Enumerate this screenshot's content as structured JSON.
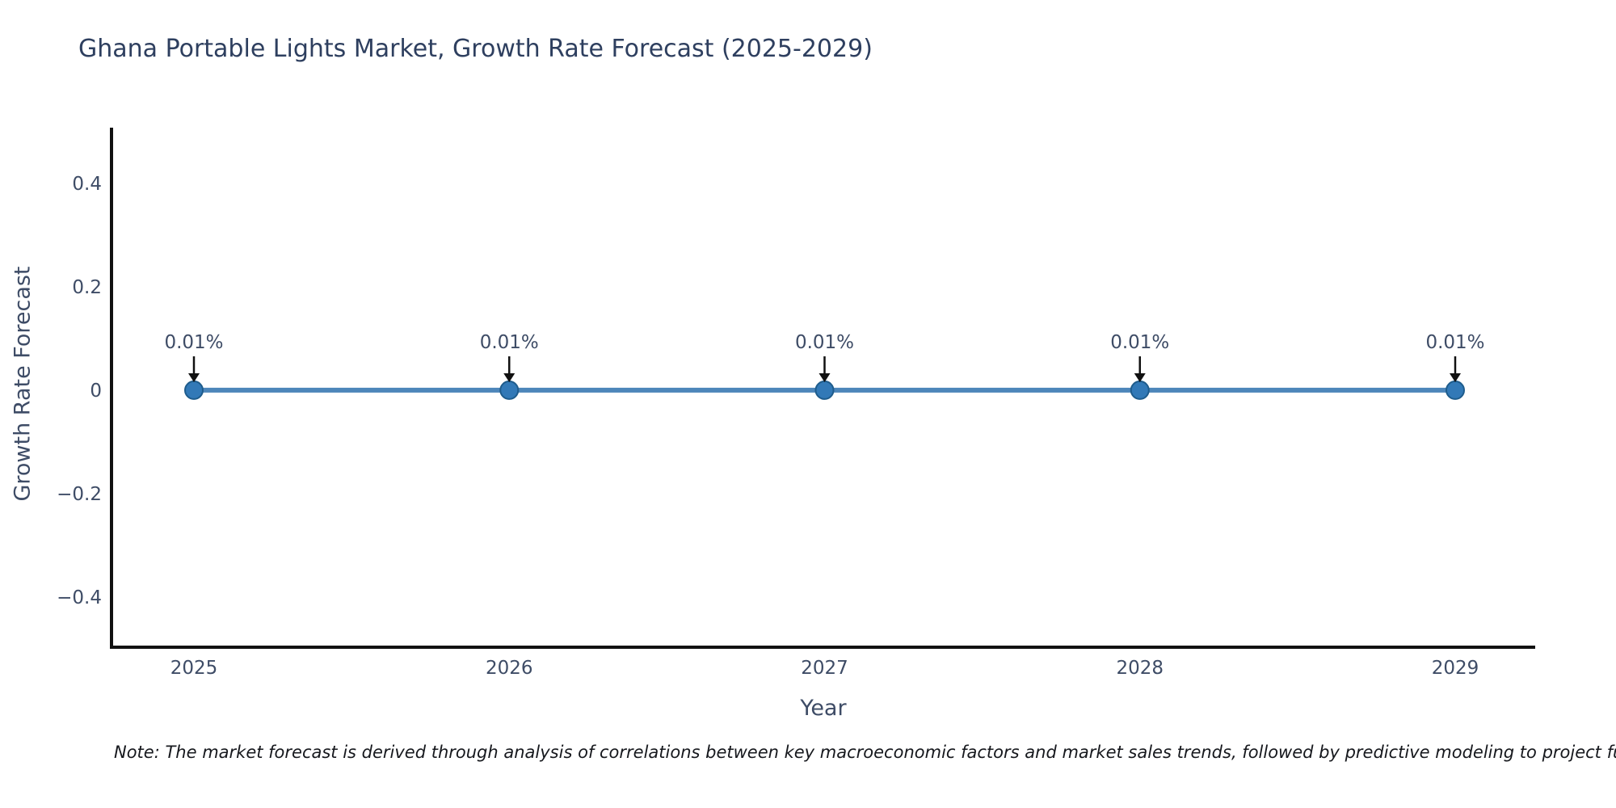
{
  "chart_data": {
    "type": "line",
    "title": "Ghana Portable Lights Market, Growth Rate Forecast (2025-2029)",
    "xlabel": "Year",
    "ylabel": "Growth Rate Forecast",
    "x": [
      2025,
      2026,
      2027,
      2028,
      2029
    ],
    "series": [
      {
        "name": "Growth Rate Forecast",
        "values_percent": [
          0.01,
          0.01,
          0.01,
          0.01,
          0.01
        ]
      }
    ],
    "point_labels": [
      "0.01%",
      "0.01%",
      "0.01%",
      "0.01%",
      "0.01%"
    ],
    "xtick_labels": [
      "2025",
      "2026",
      "2027",
      "2028",
      "2029"
    ],
    "ytick_values": [
      0.4,
      0.2,
      0,
      -0.2,
      -0.4
    ],
    "ytick_labels": [
      "0.4",
      "0.2",
      "0",
      "−0.2",
      "−0.4"
    ],
    "ylim": [
      -0.5,
      0.5
    ],
    "grid": false,
    "legend": false,
    "annotations_have_arrows": true,
    "colors": {
      "line": "#4d86ba",
      "marker_fill": "#3279b7",
      "marker_edge": "#1e5c8c",
      "axis_spine": "#111111",
      "tick_text": "#3e4c66",
      "title_text": "#2e3f5f",
      "arrow": "#111111"
    },
    "note": "Note: The market forecast is derived through analysis of correlations between key macroeconomic factors and market sales trends, followed by predictive modeling to project future sales"
  }
}
